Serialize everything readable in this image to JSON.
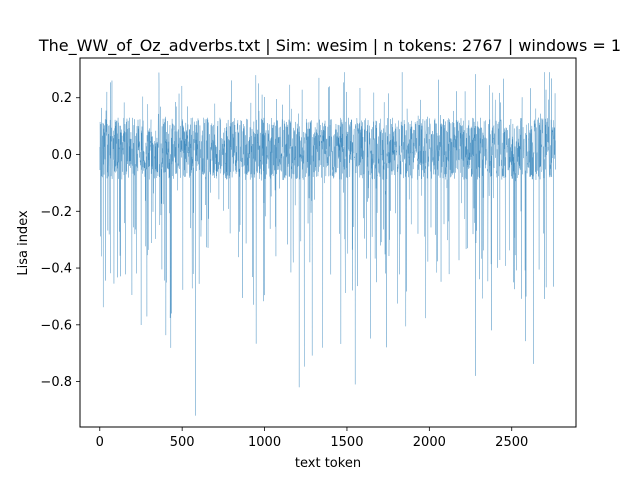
{
  "chart_data": {
    "type": "line",
    "title": "The_WW_of_Oz_adverbs.txt | Sim: wesim | n tokens: 2767 | windows = 1",
    "xlabel": "text token",
    "ylabel": "Lisa index",
    "xlim": [
      -120,
      2890
    ],
    "ylim": [
      -0.96,
      0.34
    ],
    "xticks": [
      0,
      500,
      1000,
      1500,
      2000,
      2500
    ],
    "xtick_labels": [
      "0",
      "500",
      "1000",
      "1500",
      "2000",
      "2500"
    ],
    "yticks": [
      0.2,
      0.0,
      -0.2,
      -0.4,
      -0.6,
      -0.8
    ],
    "ytick_labels": [
      "0.2",
      "0.0",
      "−0.2",
      "−0.4",
      "−0.6",
      "−0.8"
    ],
    "grid": false,
    "series": [
      {
        "color": "#1f77b4",
        "n_points": 2767,
        "range": [
          -0.92,
          0.29
        ],
        "baseline": 0.02,
        "notable_points": [
          {
            "x": 580,
            "y": -0.92
          },
          {
            "x": 1210,
            "y": -0.82
          },
          {
            "x": 1550,
            "y": -0.81
          },
          {
            "x": 2280,
            "y": -0.78
          },
          {
            "x": 2700,
            "y": 0.29
          },
          {
            "x": 2730,
            "y": 0.29
          },
          {
            "x": 1330,
            "y": 0.27
          }
        ]
      }
    ]
  }
}
